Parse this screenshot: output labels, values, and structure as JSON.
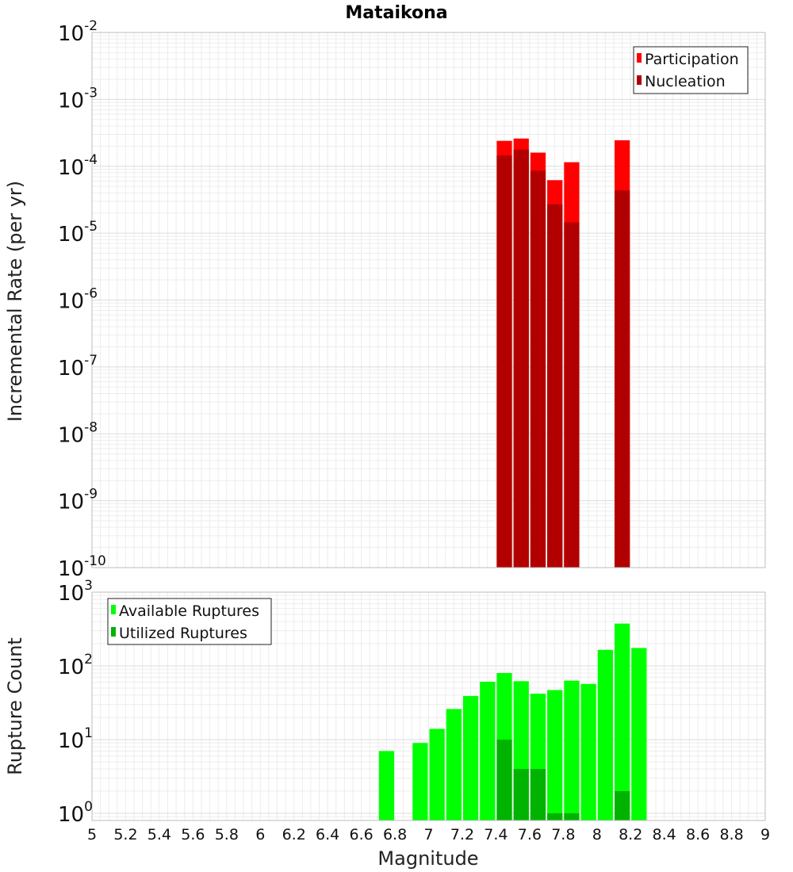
{
  "chart_data": [
    {
      "type": "bar",
      "title": "Mataikona",
      "ylabel": "Incremental Rate (per yr)",
      "xlabel": "",
      "yscale": "log",
      "ylim": [
        1e-10,
        0.01
      ],
      "xlim": [
        5,
        9
      ],
      "yticks": [
        {
          "base": "10",
          "exp": "-10"
        },
        {
          "base": "10",
          "exp": "-9"
        },
        {
          "base": "10",
          "exp": "-8"
        },
        {
          "base": "10",
          "exp": "-7"
        },
        {
          "base": "10",
          "exp": "-6"
        },
        {
          "base": "10",
          "exp": "-5"
        },
        {
          "base": "10",
          "exp": "-4"
        },
        {
          "base": "10",
          "exp": "-3"
        },
        {
          "base": "10",
          "exp": "-2"
        }
      ],
      "grid": true,
      "legend_position": "top-right",
      "bar_width": 0.1,
      "series": [
        {
          "name": "Participation",
          "color": "#ff0000",
          "points": [
            {
              "x": 7.45,
              "y": 0.00024
            },
            {
              "x": 7.55,
              "y": 0.00026
            },
            {
              "x": 7.65,
              "y": 0.00016
            },
            {
              "x": 7.75,
              "y": 6.2e-05
            },
            {
              "x": 7.85,
              "y": 0.000115
            },
            {
              "x": 8.15,
              "y": 0.000245
            }
          ]
        },
        {
          "name": "Nucleation",
          "color": "#b20000",
          "points": [
            {
              "x": 7.45,
              "y": 0.000145
            },
            {
              "x": 7.55,
              "y": 0.000178
            },
            {
              "x": 7.65,
              "y": 8.6e-05
            },
            {
              "x": 7.75,
              "y": 2.7e-05
            },
            {
              "x": 7.85,
              "y": 1.45e-05
            },
            {
              "x": 8.15,
              "y": 4.35e-05
            }
          ]
        }
      ]
    },
    {
      "type": "bar",
      "title": "",
      "ylabel": "Rupture Count",
      "xlabel": "Magnitude",
      "yscale": "log",
      "ylim": [
        0.8,
        1000
      ],
      "xlim": [
        5,
        9
      ],
      "yticks": [
        {
          "base": "10",
          "exp": "0",
          "value": 1
        },
        {
          "base": "10",
          "exp": "1",
          "value": 10
        },
        {
          "base": "10",
          "exp": "2",
          "value": 100
        },
        {
          "base": "10",
          "exp": "3",
          "value": 1000
        }
      ],
      "xticks": [
        "5",
        "5.2",
        "5.4",
        "5.6",
        "5.8",
        "6",
        "6.2",
        "6.4",
        "6.6",
        "6.8",
        "7",
        "7.2",
        "7.4",
        "7.6",
        "7.8",
        "8",
        "8.2",
        "8.4",
        "8.6",
        "8.8",
        "9"
      ],
      "grid": true,
      "legend_position": "top-left",
      "bar_width": 0.1,
      "series": [
        {
          "name": "Available Ruptures",
          "color": "#00ff00",
          "points": [
            {
              "x": 6.75,
              "y": 7
            },
            {
              "x": 6.95,
              "y": 9
            },
            {
              "x": 7.05,
              "y": 14
            },
            {
              "x": 7.15,
              "y": 26
            },
            {
              "x": 7.25,
              "y": 39
            },
            {
              "x": 7.35,
              "y": 61
            },
            {
              "x": 7.45,
              "y": 80
            },
            {
              "x": 7.55,
              "y": 62
            },
            {
              "x": 7.65,
              "y": 42
            },
            {
              "x": 7.75,
              "y": 47
            },
            {
              "x": 7.85,
              "y": 63
            },
            {
              "x": 7.95,
              "y": 57
            },
            {
              "x": 8.05,
              "y": 165
            },
            {
              "x": 8.15,
              "y": 375
            },
            {
              "x": 8.25,
              "y": 175
            }
          ]
        },
        {
          "name": "Utilized Ruptures",
          "color": "#00b300",
          "points": [
            {
              "x": 7.45,
              "y": 10
            },
            {
              "x": 7.55,
              "y": 4
            },
            {
              "x": 7.65,
              "y": 4
            },
            {
              "x": 7.75,
              "y": 1
            },
            {
              "x": 7.85,
              "y": 1
            },
            {
              "x": 8.15,
              "y": 2
            }
          ]
        }
      ]
    }
  ]
}
